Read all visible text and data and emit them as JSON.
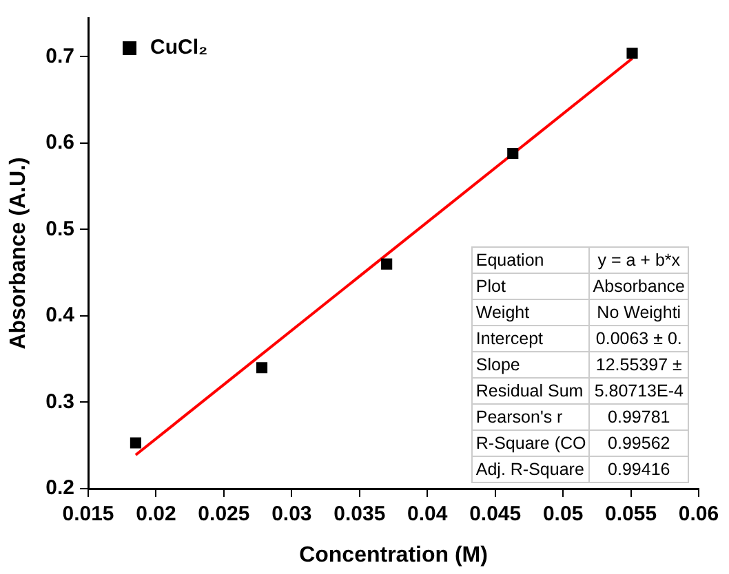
{
  "chart_data": {
    "type": "scatter",
    "xlabel": "Concentration (M)",
    "ylabel": "Absorbance (A.U.)",
    "series": [
      {
        "name": "CuCl₂",
        "type": "scatter",
        "color": "#000000",
        "marker": "square",
        "x": [
          0.0185,
          0.0278,
          0.037,
          0.0463,
          0.0551
        ],
        "values": [
          0.253,
          0.34,
          0.46,
          0.588,
          0.704
        ]
      },
      {
        "type": "line",
        "color": "#ff0000",
        "marker": "none",
        "line_style": "solid",
        "x": [
          0.0185,
          0.0551
        ],
        "values": [
          0.239,
          0.698
        ]
      }
    ],
    "xlim": [
      0.015,
      0.06
    ],
    "xticks": [
      0.015,
      0.02,
      0.025,
      0.03,
      0.035,
      0.04,
      0.045,
      0.05,
      0.055,
      0.06
    ],
    "ylim": [
      0.2,
      0.745
    ],
    "yticks": [
      0.2,
      0.3,
      0.4,
      0.5,
      0.6,
      0.7
    ],
    "grid": false,
    "legend": "top left",
    "annotations": [
      "Equation",
      "y = a + b*x",
      "Plot",
      "Absorbance",
      "Weight",
      "No Weighti",
      "Intercept",
      "0.0063 ± 0.",
      "Slope",
      "12.55397 ±",
      "Residual Sum",
      "5.80713E-4",
      "Pearson's r",
      "0.99781",
      "R-Square (CO",
      "0.99562",
      "Adj. R-Square",
      "0.99416"
    ]
  }
}
